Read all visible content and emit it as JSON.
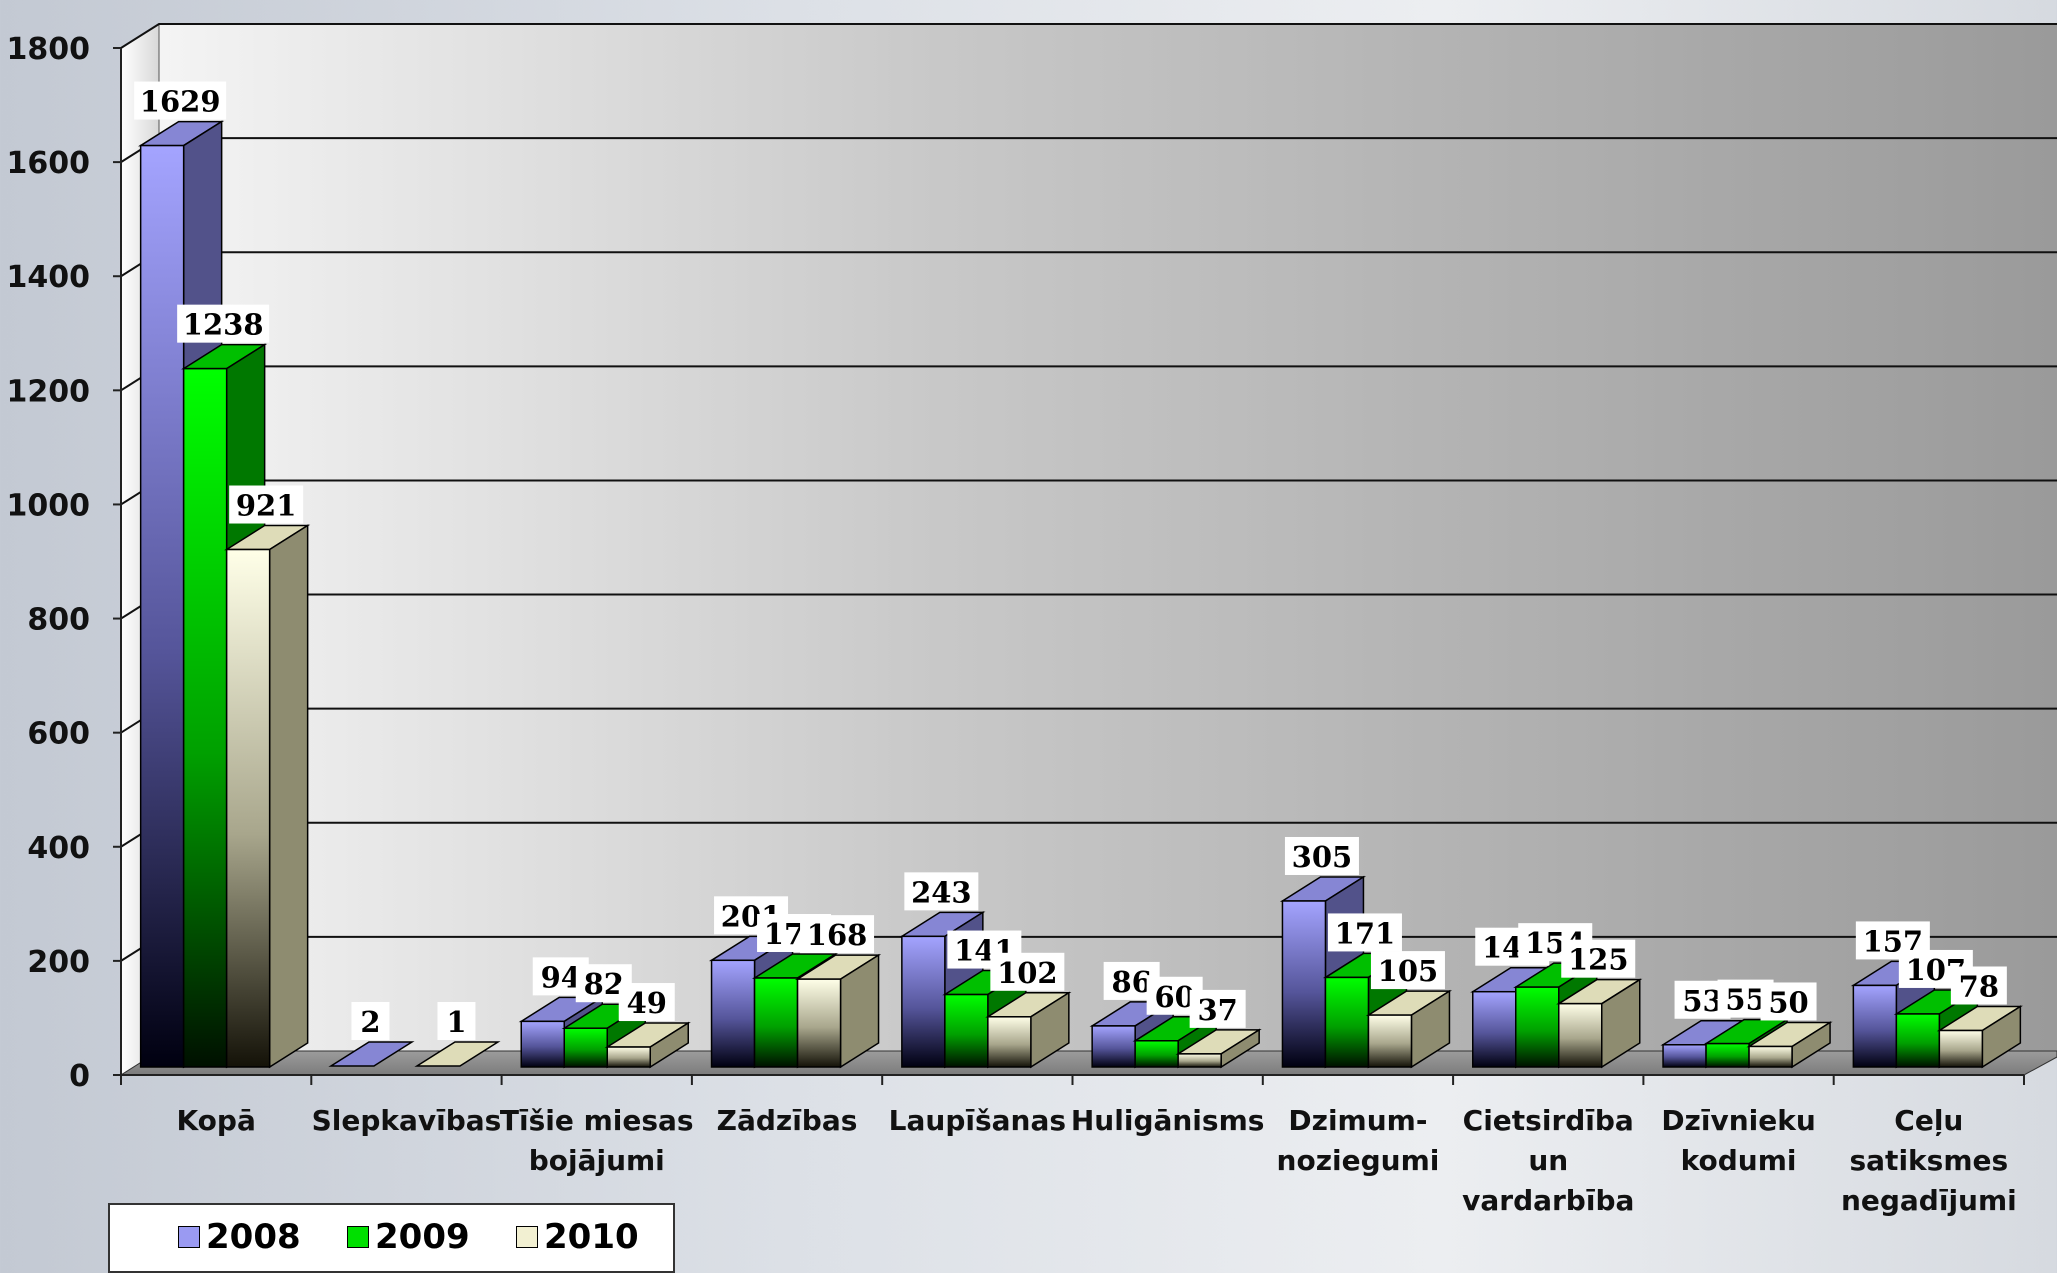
{
  "chart_data": {
    "type": "bar",
    "style": "3d-clustered-column",
    "categories": [
      "Kopā",
      "Slepkavības",
      "Tīšie miesas bojājumi",
      "Zādzības",
      "Laupīšanas",
      "Huligānisms",
      "Dzimum- noziegumi",
      "Cietsirdība un vardarbība",
      "Dzīvnieku kodumi",
      "Ceļu satiksmes negadījumi"
    ],
    "category_lines": [
      [
        "Kopā"
      ],
      [
        "Slepkavības"
      ],
      [
        "Tīšie miesas",
        "bojājumi"
      ],
      [
        "Zādzības"
      ],
      [
        "Laupīšanas"
      ],
      [
        "Huligānisms"
      ],
      [
        "Dzimum-",
        "noziegumi"
      ],
      [
        "Cietsirdība",
        "un",
        "vardarbība"
      ],
      [
        "Dzīvnieku",
        "kodumi"
      ],
      [
        "Ceļu",
        "satiksmes",
        "negadījumi"
      ]
    ],
    "series": [
      {
        "name": "2008",
        "color": "#9a9af2",
        "values": [
          1629,
          2,
          94,
          201,
          243,
          86,
          305,
          146,
          53,
          157
        ]
      },
      {
        "name": "2009",
        "color": "#00e000",
        "values": [
          1238,
          null,
          82,
          170,
          141,
          60,
          171,
          154,
          55,
          107
        ]
      },
      {
        "name": "2010",
        "color": "#f2f0d2",
        "values": [
          921,
          1,
          49,
          168,
          102,
          37,
          105,
          125,
          50,
          78
        ]
      }
    ],
    "yticks": [
      "0",
      "200",
      "400",
      "600",
      "800",
      "1000",
      "1200",
      "1400",
      "1600",
      "1800"
    ],
    "ylim": [
      0,
      1800
    ],
    "grid": true,
    "legend_position": "bottom-left"
  }
}
